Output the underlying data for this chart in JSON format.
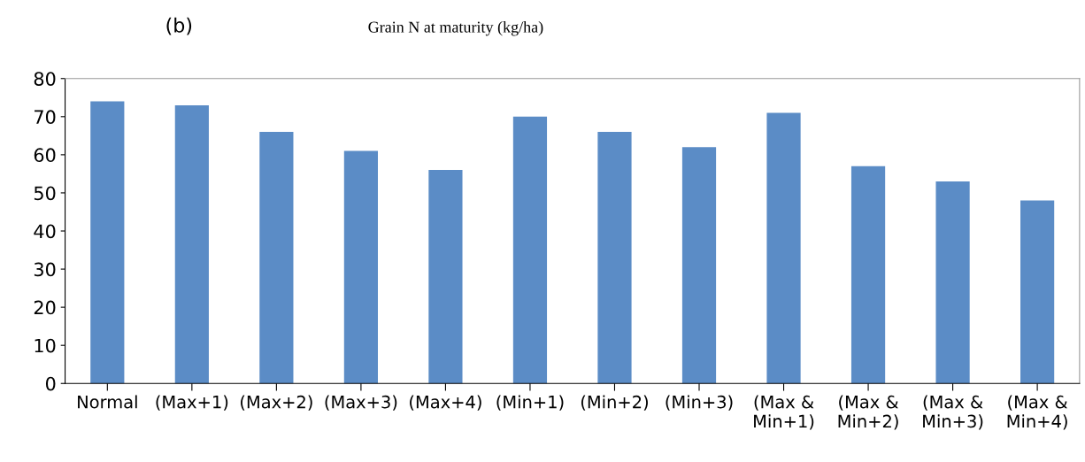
{
  "chart_data": {
    "type": "bar",
    "title": "Grain N at maturity (kg/ha)",
    "annotations": [
      "(b)"
    ],
    "categories": [
      "Normal",
      "(Max+1)",
      "(Max+2)",
      "(Max+3)",
      "(Max+4)",
      "(Min+1)",
      "(Min+2)",
      "(Min+3)",
      "(Max &\nMin+1)",
      "(Max &\nMin+2)",
      "(Max &\nMin+3)",
      "(Max &\nMin+4)"
    ],
    "values": [
      74,
      73,
      66,
      61,
      56,
      70,
      66,
      62,
      71,
      57,
      53,
      48
    ],
    "color": "#5b8cc6",
    "ylim": [
      0,
      80
    ],
    "yticks": [
      0,
      10,
      20,
      30,
      40,
      50,
      60,
      70,
      80
    ],
    "grid": false
  }
}
